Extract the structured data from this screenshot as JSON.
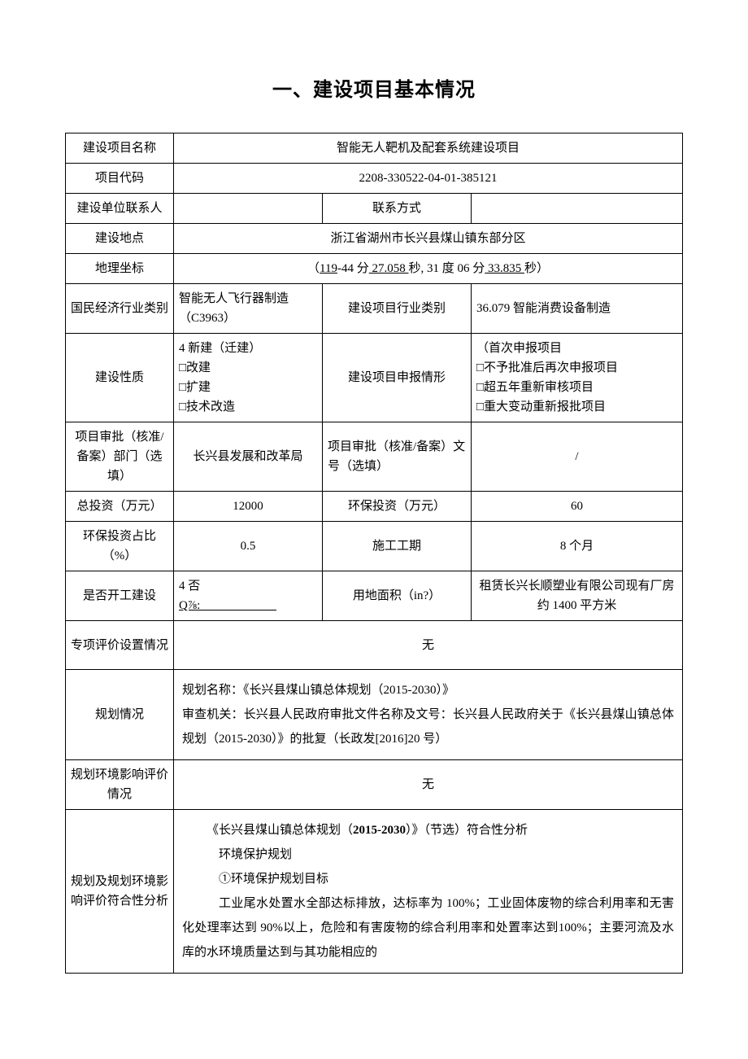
{
  "title": "一、建设项目基本情况",
  "rows": {
    "project_name_label": "建设项目名称",
    "project_name": "智能无人靶机及配套系统建设项目",
    "project_code_label": "项目代码",
    "project_code": "2208-330522-04-01-385121",
    "contact_person_label": "建设单位联系人",
    "contact_person": "",
    "contact_method_label": "联系方式",
    "contact_method": "",
    "location_label": "建设地点",
    "location": "浙江省湖州市长兴县煤山镇东部分区",
    "coords_label": "地理坐标",
    "coords_pre": "（",
    "coords_a": "119",
    "coords_b": "-44 分",
    "coords_c": " 27.058 ",
    "coords_d": "秒, 31 度 06 分",
    "coords_e": " 33.835 ",
    "coords_f": "秒）",
    "industry_cat_label": "国民经济行业类别",
    "industry_cat": "智能无人飞行器制造（C3963）",
    "project_industry_label": "建设项目行业类别",
    "project_industry": "36.079 智能消费设备制造",
    "nature_label": "建设性质",
    "nature_line1": "4 新建（迁建）",
    "nature_line2": "□改建",
    "nature_line3": "□扩建",
    "nature_line4": "□技术改造",
    "declare_label": "建设项目申报情形",
    "declare_line1": "（首次申报项目",
    "declare_line2": "□不予批准后再次申报项目",
    "declare_line3": "□超五年重新审核项目",
    "declare_line4": "□重大变动重新报批项目",
    "approve_dept_label": "项目审批（核准/备案）部门（选填）",
    "approve_dept": "长兴县发展和改革局",
    "approve_no_label": "项目审批（核准/备案）文号（选填）",
    "approve_no": "/",
    "total_invest_label": "总投资（万元）",
    "total_invest": "12000",
    "env_invest_label": "环保投资（万元）",
    "env_invest": "60",
    "env_ratio_label": "环保投资占比（%）",
    "env_ratio": "0.5",
    "duration_label": "施工工期",
    "duration": "8 个月",
    "started_label": "是否开工建设",
    "started_line1": "4 否",
    "started_line2a": "Q⅞: ",
    "started_line2b": "　　　　　　",
    "land_area_label": "用地面积（in?）",
    "land_area": "租赁长兴长顺塑业有限公司现有厂房约 1400 平方米",
    "special_eval_label": "专项评价设置情况",
    "special_eval": "无",
    "plan_label": "规划情况",
    "plan_text_l1": "规划名称：《长兴县煤山镇总体规划（2015-2030）》",
    "plan_text_l2": "审查机关：长兴县人民政府审批文件名称及文号：长兴县人民政府关于《长兴县煤山镇总体规划（2015-2030）》的批复（长政发[2016]20 号）",
    "plan_env_label": "规划环境影响评价情况",
    "plan_env": "无",
    "compliance_label": "规划及规划环境影响评价符合性分析",
    "comp_l1a": "《长兴县煤山镇总体规划（",
    "comp_l1b": "2015-2030",
    "comp_l1c": "）》（节选）符合性分析",
    "comp_l2": "环境保护规划",
    "comp_l3": "①环境保护规划目标",
    "comp_l4": "工业尾水处置水全部达标排放，达标率为 100%；工业固体废物的综合利用率和无害化处理率达到 90%以上，危险和有害废物的综合利用率和处置率达到100%；主要河流及水库的水环境质量达到与其功能相应的"
  }
}
